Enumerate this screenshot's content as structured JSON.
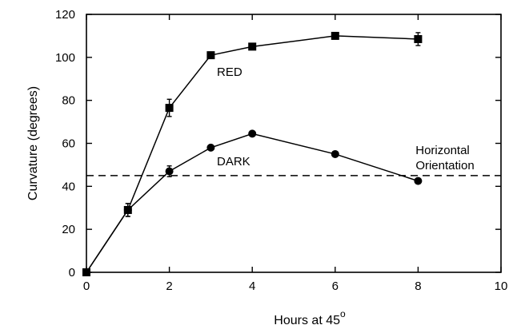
{
  "chart_data": {
    "type": "line",
    "title": "",
    "xlabel": "Hours at 45",
    "xlabel_superscript": "o",
    "ylabel": "Curvature (degrees)",
    "xlim": [
      0,
      10
    ],
    "ylim": [
      0,
      120
    ],
    "xticks": [
      0,
      2,
      4,
      6,
      8,
      10
    ],
    "yticks": [
      0,
      20,
      40,
      60,
      80,
      100,
      120
    ],
    "grid": false,
    "legend": "none",
    "series": [
      {
        "name": "RED",
        "marker": "square",
        "color": "#000000",
        "x": [
          0,
          1,
          2,
          3,
          4,
          6,
          8
        ],
        "y": [
          0,
          29,
          76.5,
          101,
          105,
          110,
          108.5
        ],
        "error": [
          0,
          3,
          4,
          1.5,
          1,
          1,
          3
        ]
      },
      {
        "name": "DARK",
        "marker": "circle",
        "color": "#000000",
        "x": [
          0,
          1,
          2,
          3,
          4,
          6,
          8
        ],
        "y": [
          0,
          29,
          47,
          58,
          64.5,
          55,
          42.5
        ],
        "error": [
          0,
          3,
          2.5,
          1,
          1,
          1,
          1
        ]
      }
    ],
    "reference_lines": [
      {
        "type": "horizontal",
        "y": 45,
        "style": "dashed",
        "label_line1": "Horizontal",
        "label_line2": "Orientation"
      }
    ]
  }
}
